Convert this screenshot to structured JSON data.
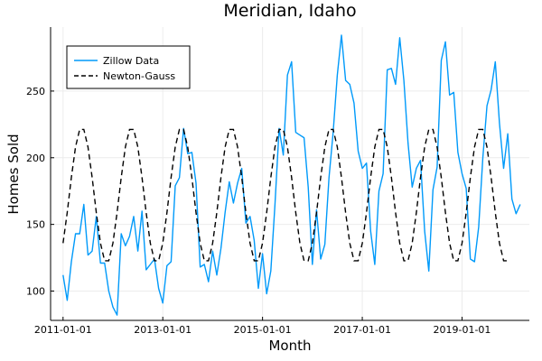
{
  "chart_data": {
    "type": "line",
    "title": "Meridian, Idaho",
    "xlabel": "Month",
    "ylabel": "Homes Sold",
    "xlim": [
      2010.75,
      2020.35
    ],
    "ylim": [
      78,
      298
    ],
    "xticks": [
      {
        "value": 2011.0,
        "label": "2011-01-01"
      },
      {
        "value": 2013.0,
        "label": "2013-01-01"
      },
      {
        "value": 2015.0,
        "label": "2015-01-01"
      },
      {
        "value": 2017.0,
        "label": "2017-01-01"
      },
      {
        "value": 2019.0,
        "label": "2019-01-01"
      }
    ],
    "yticks": [
      100,
      150,
      200,
      250
    ],
    "grid": true,
    "legend_position": "top-left",
    "x_start": 2011.0,
    "x_step": 0.0833333,
    "series": [
      {
        "name": "Zillow Data",
        "color": "#009AFA",
        "style": "solid",
        "values": [
          112,
          93,
          122,
          143,
          143,
          165,
          127,
          130,
          156,
          121,
          121,
          100,
          88,
          82,
          143,
          134,
          141,
          156,
          130,
          160,
          116,
          120,
          124,
          102,
          91,
          119,
          122,
          179,
          185,
          222,
          203,
          204,
          181,
          118,
          120,
          107,
          130,
          112,
          132,
          159,
          182,
          166,
          181,
          192,
          151,
          156,
          138,
          102,
          128,
          98,
          115,
          165,
          222,
          202,
          262,
          272,
          219,
          217,
          215,
          178,
          120,
          161,
          124,
          135,
          185,
          219,
          262,
          292,
          258,
          255,
          241,
          205,
          192,
          196,
          145,
          120,
          175,
          188,
          266,
          267,
          255,
          290,
          258,
          211,
          178,
          192,
          198,
          145,
          115,
          176,
          193,
          273,
          287,
          247,
          249,
          204,
          188,
          177,
          124,
          122,
          148,
          200,
          239,
          251,
          272,
          226,
          192,
          218,
          169,
          158,
          165
        ]
      },
      {
        "name": "Newton-Gauss",
        "color": "#000000",
        "style": "dashed",
        "model": {
          "mean": 172,
          "amplitude": 51,
          "peak_month_offset": 4.5,
          "period_months": 12
        },
        "n_points": 108
      }
    ]
  }
}
